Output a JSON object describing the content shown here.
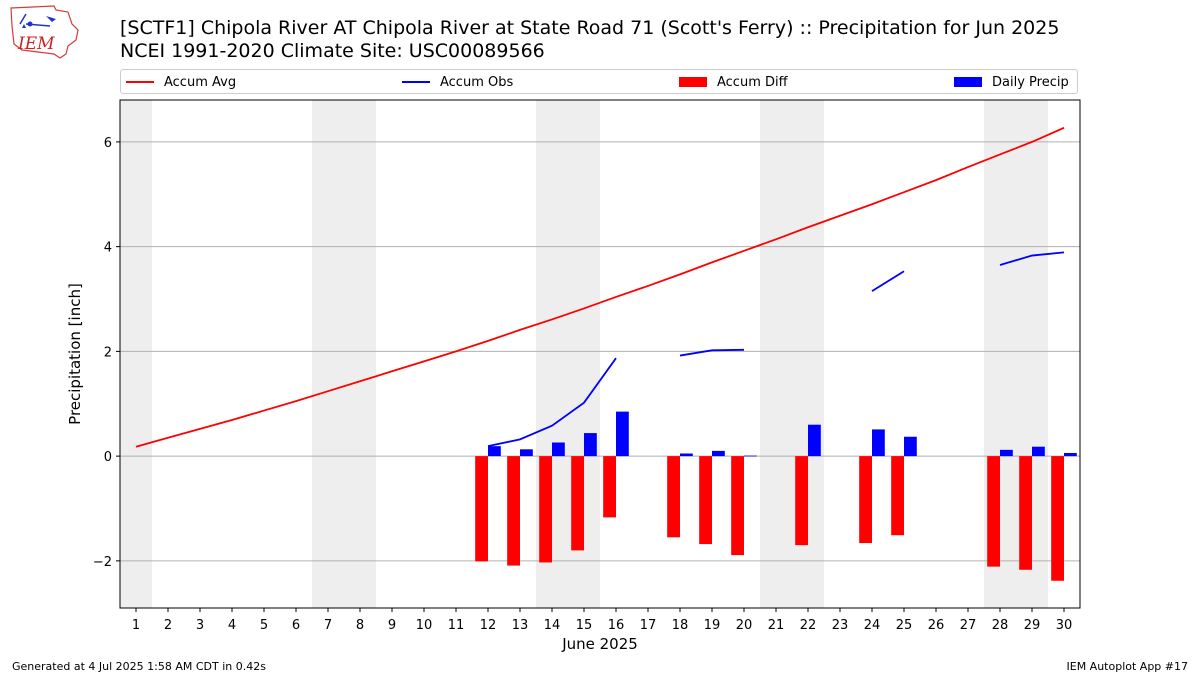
{
  "header": {
    "title_line1": "[SCTF1] Chipola River  AT Chipola River at State Road 71 (Scott's Ferry) :: Precipitation for Jun 2025",
    "title_line2": "NCEI 1991-2020 Climate Site: USC00089566",
    "logo_text": "IEM"
  },
  "legend": {
    "accum_avg": "Accum Avg",
    "accum_obs": "Accum Obs",
    "accum_diff": "Accum Diff",
    "daily_precip": "Daily Precip"
  },
  "footer": {
    "generated": "Generated at 4 Jul 2025 1:58 AM CDT in 0.42s",
    "app": "IEM Autoplot App #17"
  },
  "colors": {
    "accum_avg": "#ff0000",
    "accum_obs": "#0000ff",
    "accum_diff": "#ff0000",
    "daily_precip": "#0000ff",
    "weekend_band": "#eeeeee",
    "grid": "#b0b0b0"
  },
  "chart_data": {
    "type": "bar",
    "xlabel": "June 2025",
    "ylabel": "Precipitation [inch]",
    "xlim": [
      0.5,
      30.5
    ],
    "ylim": [
      -2.9,
      6.8
    ],
    "yticks": [
      -2,
      0,
      2,
      4,
      6
    ],
    "x": [
      1,
      2,
      3,
      4,
      5,
      6,
      7,
      8,
      9,
      10,
      11,
      12,
      13,
      14,
      15,
      16,
      17,
      18,
      19,
      20,
      21,
      22,
      23,
      24,
      25,
      26,
      27,
      28,
      29,
      30
    ],
    "weekend_bands": [
      [
        0.5,
        1.5
      ],
      [
        6.5,
        8.5
      ],
      [
        13.5,
        15.5
      ],
      [
        20.5,
        22.5
      ],
      [
        27.5,
        29.5
      ]
    ],
    "grid": true,
    "legend_position": "top",
    "series": [
      {
        "name": "Accum Avg",
        "type": "line",
        "values": [
          0.18,
          0.35,
          0.52,
          0.69,
          0.87,
          1.05,
          1.24,
          1.43,
          1.62,
          1.81,
          2.0,
          2.2,
          2.41,
          2.61,
          2.82,
          3.04,
          3.25,
          3.47,
          3.7,
          3.92,
          4.14,
          4.37,
          4.59,
          4.81,
          5.04,
          5.27,
          5.52,
          5.76,
          6.0,
          6.27
        ]
      },
      {
        "name": "Accum Obs",
        "type": "line",
        "values": [
          null,
          null,
          null,
          null,
          null,
          null,
          null,
          null,
          null,
          null,
          null,
          0.19,
          0.32,
          0.58,
          1.02,
          1.87,
          null,
          1.92,
          2.02,
          2.03,
          null,
          null,
          null,
          3.15,
          3.53,
          null,
          null,
          3.65,
          3.83,
          3.89
        ]
      },
      {
        "name": "Accum Diff",
        "type": "bar",
        "values": [
          null,
          null,
          null,
          null,
          null,
          null,
          null,
          null,
          null,
          null,
          null,
          -2.01,
          -2.09,
          -2.03,
          -1.8,
          -1.17,
          null,
          -1.55,
          -1.68,
          -1.89,
          null,
          -1.7,
          null,
          -1.66,
          -1.51,
          null,
          null,
          -2.11,
          -2.17,
          -2.38
        ]
      },
      {
        "name": "Daily Precip",
        "type": "bar",
        "values": [
          null,
          null,
          null,
          null,
          null,
          null,
          null,
          null,
          null,
          null,
          null,
          0.19,
          0.13,
          0.26,
          0.44,
          0.85,
          null,
          0.05,
          0.1,
          0.01,
          null,
          0.6,
          null,
          0.51,
          0.37,
          null,
          null,
          0.12,
          0.18,
          0.06
        ]
      }
    ]
  }
}
